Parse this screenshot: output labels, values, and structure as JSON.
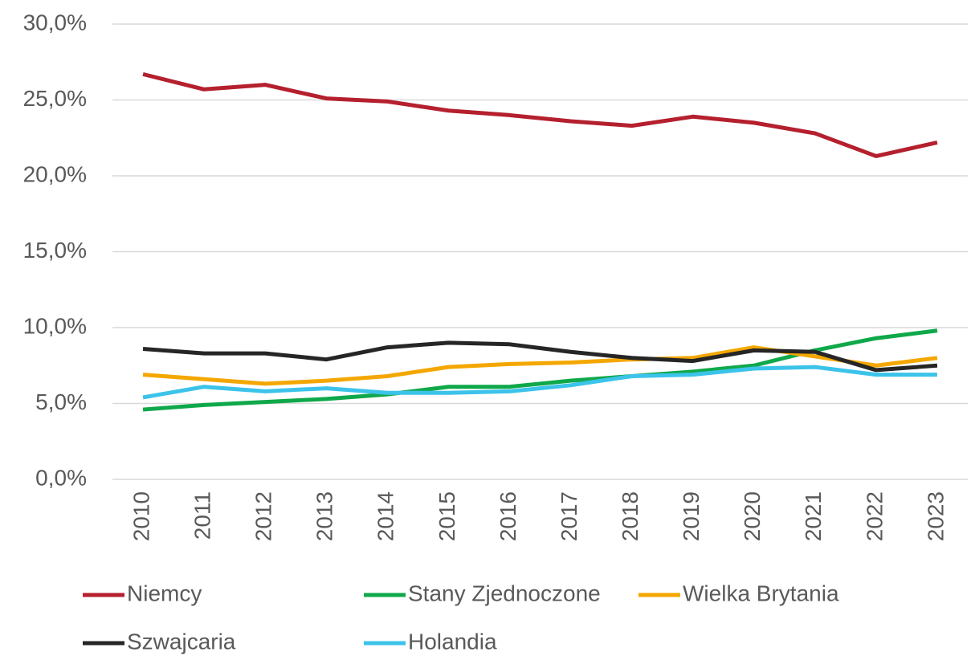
{
  "chart_data": {
    "type": "line",
    "categories": [
      "2010",
      "2011",
      "2012",
      "2013",
      "2014",
      "2015",
      "2016",
      "2017",
      "2018",
      "2019",
      "2020",
      "2021",
      "2022",
      "2023"
    ],
    "series": [
      {
        "name": "Niemcy",
        "color": "#b5202e",
        "values": [
          26.7,
          25.7,
          26.0,
          25.1,
          24.9,
          24.3,
          24.0,
          23.6,
          23.3,
          23.9,
          23.5,
          22.8,
          21.3,
          22.2
        ]
      },
      {
        "name": "Stany Zjednoczone",
        "color": "#0fa84a",
        "values": [
          4.6,
          4.9,
          5.1,
          5.3,
          5.6,
          6.1,
          6.1,
          6.5,
          6.8,
          7.1,
          7.5,
          8.5,
          9.3,
          9.8
        ]
      },
      {
        "name": "Wielka Brytania",
        "color": "#f4a700",
        "values": [
          6.9,
          6.6,
          6.3,
          6.5,
          6.8,
          7.4,
          7.6,
          7.7,
          7.9,
          8.0,
          8.7,
          8.1,
          7.5,
          8.0
        ]
      },
      {
        "name": "Szwajcaria",
        "color": "#262626",
        "values": [
          8.6,
          8.3,
          8.3,
          7.9,
          8.7,
          9.0,
          8.9,
          8.4,
          8.0,
          7.8,
          8.5,
          8.4,
          7.2,
          7.5
        ]
      },
      {
        "name": "Holandia",
        "color": "#3cc3ea",
        "values": [
          5.4,
          6.1,
          5.8,
          6.0,
          5.7,
          5.7,
          5.8,
          6.2,
          6.8,
          6.9,
          7.3,
          7.4,
          6.9,
          6.9
        ]
      }
    ],
    "ylim": [
      0,
      30
    ],
    "yticks": [
      {
        "value": 0,
        "label": "0,0%"
      },
      {
        "value": 5,
        "label": "5,0%"
      },
      {
        "value": 10,
        "label": "10,0%"
      },
      {
        "value": 15,
        "label": "15,0%"
      },
      {
        "value": 20,
        "label": "20,0%"
      },
      {
        "value": 25,
        "label": "25,0%"
      },
      {
        "value": 30,
        "label": "30,0%"
      }
    ],
    "grid": true,
    "legend": "bottom"
  }
}
